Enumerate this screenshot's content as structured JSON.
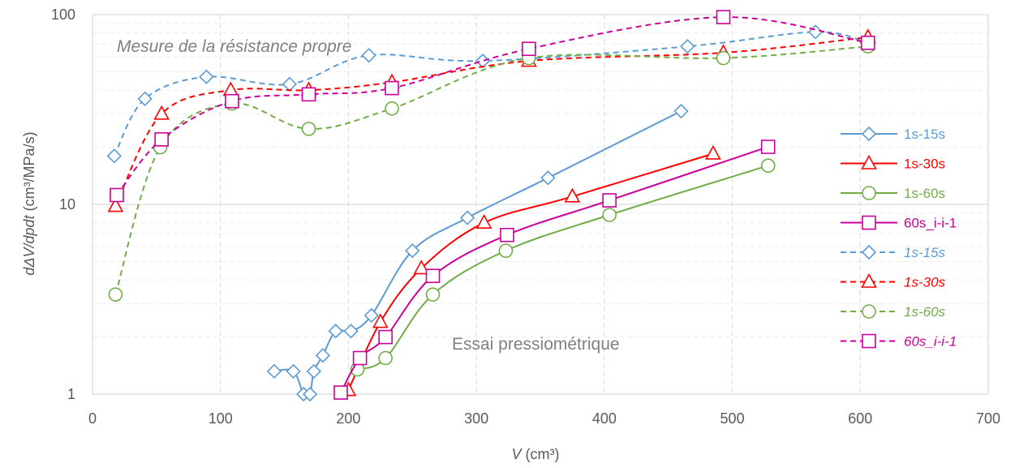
{
  "chart_data": {
    "type": "scatter",
    "x_axis": {
      "min": 0,
      "max": 700,
      "ticks": [
        "0",
        "100",
        "200",
        "300",
        "400",
        "500",
        "600",
        "700"
      ],
      "label_italic": "V",
      "label_unit": "(cm³)"
    },
    "y_axis": {
      "scale": "log",
      "min": 1,
      "max": 100,
      "ticks": [
        "1",
        "10",
        "100"
      ],
      "label_italic": "dΔV/dpdt",
      "label_unit": "(cm³/MPa/s)"
    },
    "grid": {
      "major": true,
      "minor": true
    },
    "legend_position": "right",
    "annotations": {
      "top": "Mesure de la résistance propre",
      "bottom": "Essai pressiométrique"
    },
    "series": [
      {
        "name": "1s-15s",
        "style": "solid",
        "marker": "diamond",
        "color": "#5B9BD5",
        "points": [
          [
            142,
            1.32
          ],
          [
            157,
            1.32
          ],
          [
            165,
            1.0
          ],
          [
            170,
            1.0
          ],
          [
            173,
            1.32
          ],
          [
            180,
            1.6
          ],
          [
            190,
            2.15
          ],
          [
            202,
            2.15
          ],
          [
            218,
            2.6
          ],
          [
            250,
            5.7
          ],
          [
            293,
            8.5
          ],
          [
            356,
            13.8
          ],
          [
            460,
            31
          ]
        ]
      },
      {
        "name": "1s-30s",
        "style": "solid",
        "marker": "triangle",
        "color": "#FF0000",
        "points": [
          [
            200,
            1.05
          ],
          [
            225,
            2.4
          ],
          [
            257,
            4.6
          ],
          [
            306,
            8.0
          ],
          [
            375,
            11
          ],
          [
            485,
            18.5
          ]
        ]
      },
      {
        "name": "1s-60s",
        "style": "solid",
        "marker": "circle",
        "color": "#70AD47",
        "points": [
          [
            207,
            1.35
          ],
          [
            229,
            1.55
          ],
          [
            266,
            3.35
          ],
          [
            323,
            5.7
          ],
          [
            404,
            8.8
          ],
          [
            528,
            16
          ]
        ]
      },
      {
        "name": "60s_i-i-1",
        "style": "solid",
        "marker": "square",
        "color": "#CC0099",
        "points": [
          [
            194,
            1.02
          ],
          [
            209,
            1.55
          ],
          [
            229,
            2.0
          ],
          [
            266,
            4.2
          ],
          [
            324,
            6.9
          ],
          [
            404,
            10.5
          ],
          [
            528,
            20.1
          ]
        ]
      },
      {
        "name": "1s-15s",
        "style": "dashed",
        "marker": "diamond",
        "color": "#5B9BD5",
        "points": [
          [
            17,
            18
          ],
          [
            41,
            36
          ],
          [
            89,
            47
          ],
          [
            154,
            43
          ],
          [
            216,
            61
          ],
          [
            305,
            57
          ],
          [
            465,
            68
          ],
          [
            565,
            81
          ],
          [
            606,
            71
          ]
        ]
      },
      {
        "name": "1s-30s",
        "style": "dashed",
        "marker": "triangle",
        "color": "#FF0000",
        "points": [
          [
            18,
            9.8
          ],
          [
            54,
            30
          ],
          [
            108,
            40
          ],
          [
            169,
            40
          ],
          [
            234,
            44
          ],
          [
            341,
            57
          ],
          [
            493,
            63
          ],
          [
            606,
            76
          ]
        ]
      },
      {
        "name": "1s-60s",
        "style": "dashed",
        "marker": "circle",
        "color": "#70AD47",
        "points": [
          [
            18,
            3.35
          ],
          [
            53,
            20
          ],
          [
            109,
            34
          ],
          [
            169,
            25
          ],
          [
            234,
            32
          ],
          [
            341,
            59
          ],
          [
            493,
            59
          ],
          [
            606,
            68
          ]
        ]
      },
      {
        "name": "60s_i-i-1",
        "style": "dashed",
        "marker": "square",
        "color": "#CC0099",
        "points": [
          [
            19,
            11.2
          ],
          [
            54,
            22
          ],
          [
            109,
            35
          ],
          [
            169,
            38
          ],
          [
            234,
            41
          ],
          [
            341,
            66
          ],
          [
            493,
            97
          ],
          [
            606,
            71
          ]
        ]
      }
    ]
  }
}
